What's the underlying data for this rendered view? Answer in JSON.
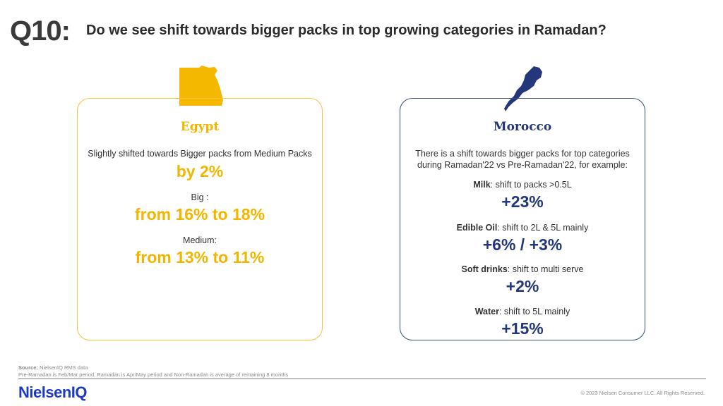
{
  "header": {
    "q_number": "Q10:",
    "title": "Do we see shift towards bigger packs in top growing categories in Ramadan?"
  },
  "egypt": {
    "title": "Egypt",
    "intro": "Slightly shifted towards Bigger packs from Medium Packs",
    "intro_value": "by 2%",
    "big_label": "Big :",
    "big_value": "from 16% to 18%",
    "medium_label": "Medium:",
    "medium_value": "from 13% to 11%"
  },
  "morocco": {
    "title": "Morocco",
    "intro_line1": "There is a shift towards bigger packs for top categories",
    "intro_line2": "during Ramadan'22 vs Pre-Ramadan'22, for example:",
    "items": [
      {
        "name": "Milk",
        "desc": ": shift to packs >0.5L",
        "value": "+23%"
      },
      {
        "name": "Edible Oil",
        "desc": ": shift to 2L & 5L mainly",
        "value": "+6% / +3%"
      },
      {
        "name": "Soft drinks",
        "desc": ": shift to multi serve",
        "value": "+2%"
      },
      {
        "name": "Water",
        "desc": ": shift to 5L mainly",
        "value": "+15%"
      }
    ]
  },
  "colors": {
    "egypt_accent": "#f2b600",
    "morocco_accent": "#24377a",
    "logo_blue": "#1d39c4"
  },
  "footer": {
    "source_label": "Source:",
    "source_text": " NielsenIQ RMS data",
    "note": "Pre-Ramadan  is Feb/Mar period, Ramadan is Apr/May period and Non-Ramadan is average of remaining 8 months",
    "logo": "NielsenIQ",
    "copyright": "© 2023 Nielsen Consumer LLC. All Rights Reserved."
  }
}
